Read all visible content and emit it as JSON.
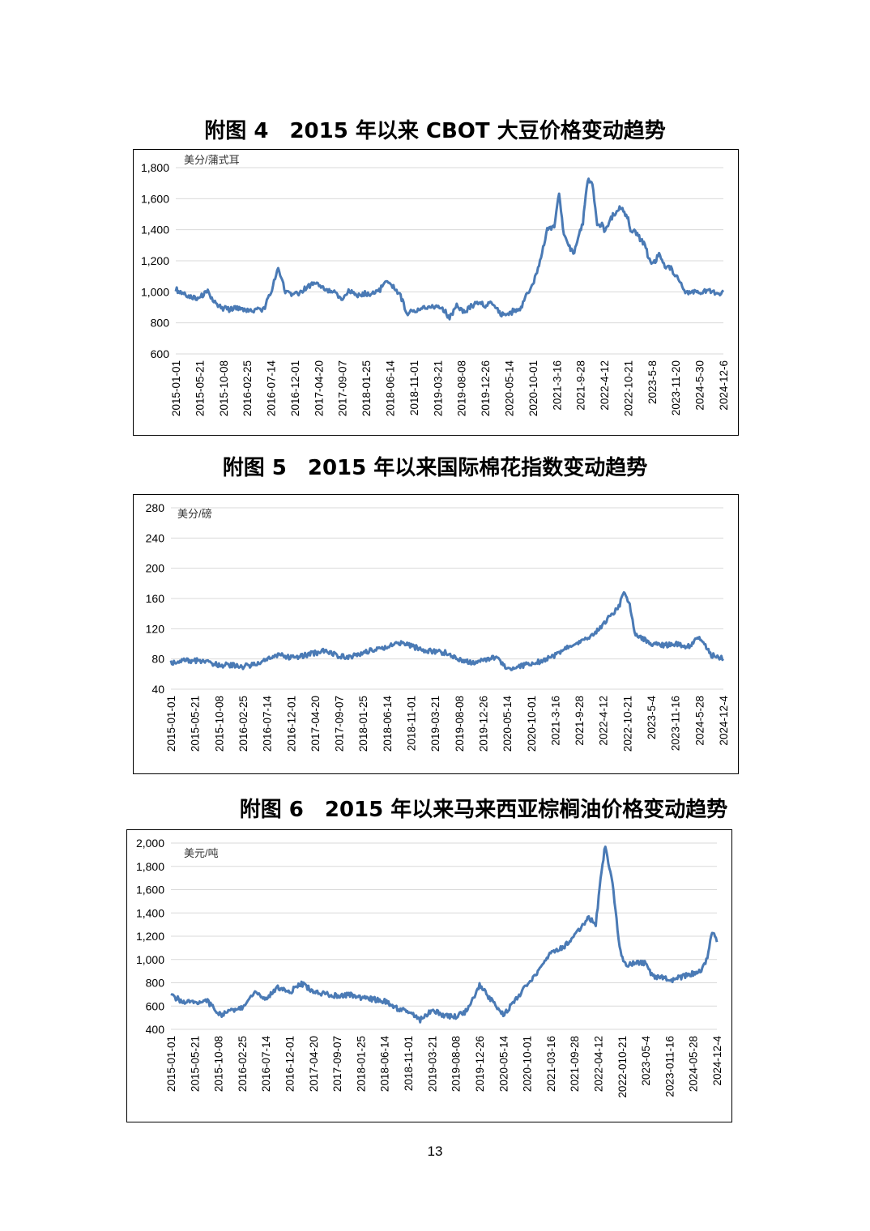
{
  "page_number": "13",
  "chart_data": [
    {
      "type": "line",
      "title": "附图 4　2015 年以来 CBOT 大豆价格变动趋势",
      "unit_label": "美分/蒲式耳",
      "ylim": [
        600,
        1800
      ],
      "yticks": [
        "600",
        "800",
        "1,000",
        "1,200",
        "1,400",
        "1,600",
        "1,800"
      ],
      "ytick_values": [
        600,
        800,
        1000,
        1200,
        1400,
        1600,
        1800
      ],
      "xticks": [
        "2015-01-01",
        "2015-05-21",
        "2015-10-08",
        "2016-02-25",
        "2016-07-14",
        "2016-12-01",
        "2017-04-20",
        "2017-09-07",
        "2018-01-25",
        "2018-06-14",
        "2018-11-01",
        "2019-03-21",
        "2019-08-08",
        "2019-12-26",
        "2020-05-14",
        "2020-10-01",
        "2021-3-16",
        "2021-9-28",
        "2022-4-12",
        "2022-10-21",
        "2023-5-8",
        "2023-11-20",
        "2024-5-30",
        "2024-12-6"
      ],
      "grid": true,
      "legend": "none",
      "color": "#4a7ab5",
      "series": [
        {
          "x": [
            0,
            0.2,
            0.5,
            0.8,
            1.0,
            1.3,
            1.6,
            1.9,
            2.2,
            2.5,
            2.8,
            3.1,
            3.4,
            3.7,
            4.0,
            4.3,
            4.6,
            4.9,
            5.2,
            5.5,
            5.8,
            6.1,
            6.4,
            6.7,
            7.0,
            7.3,
            7.6,
            7.9,
            8.2,
            8.5,
            8.8,
            9.1,
            9.4,
            9.7,
            10.0,
            10.3,
            10.6,
            10.9,
            11.2,
            11.5,
            11.8,
            12.1,
            12.4,
            12.7,
            13.0,
            13.3,
            13.6,
            13.9,
            14.2,
            14.5,
            14.8,
            15.0,
            15.3,
            15.6,
            15.9,
            16.1,
            16.3,
            16.5,
            16.7,
            16.9,
            17.1,
            17.3,
            17.5,
            17.7,
            17.9,
            18.0,
            18.2,
            18.4,
            18.6,
            18.8,
            19.0,
            19.1,
            19.3,
            19.5,
            19.7,
            19.9,
            20.1,
            20.3,
            20.5,
            20.8,
            21.1,
            21.4,
            21.7,
            22.0,
            22.3,
            22.6,
            22.9,
            23.0
          ],
          "y": [
            1020,
            990,
            975,
            965,
            960,
            1010,
            940,
            900,
            885,
            895,
            880,
            875,
            880,
            890,
            1000,
            1150,
            1000,
            975,
            990,
            1030,
            1050,
            1040,
            1010,
            990,
            955,
            1010,
            970,
            990,
            985,
            1000,
            1055,
            1040,
            990,
            865,
            870,
            900,
            895,
            900,
            895,
            830,
            920,
            870,
            905,
            930,
            915,
            935,
            860,
            840,
            880,
            900,
            1000,
            1050,
            1200,
            1400,
            1420,
            1630,
            1370,
            1300,
            1240,
            1350,
            1450,
            1720,
            1700,
            1420,
            1430,
            1400,
            1450,
            1500,
            1540,
            1520,
            1480,
            1400,
            1390,
            1340,
            1300,
            1200,
            1190,
            1240,
            1170,
            1150,
            1080,
            990,
            1000,
            990,
            1010,
            1000,
            980,
            1010
          ]
        }
      ]
    },
    {
      "type": "line",
      "title": "附图 5　2015 年以来国际棉花指数变动趋势",
      "unit_label": "美分/磅",
      "ylim": [
        40,
        280
      ],
      "yticks": [
        "40",
        "80",
        "120",
        "160",
        "200",
        "240",
        "280"
      ],
      "ytick_values": [
        40,
        80,
        120,
        160,
        200,
        240,
        280
      ],
      "xticks": [
        "2015-01-01",
        "2015-05-21",
        "2015-10-08",
        "2016-02-25",
        "2016-07-14",
        "2016-12-01",
        "2017-04-20",
        "2017-09-07",
        "2018-01-25",
        "2018-06-14",
        "2018-11-01",
        "2019-03-21",
        "2019-08-08",
        "2019-12-26",
        "2020-05-14",
        "2020-10-01",
        "2021-3-16",
        "2021-9-28",
        "2022-4-12",
        "2022-10-21",
        "2023-5-4",
        "2023-11-16",
        "2024-5-28",
        "2024-12-4"
      ],
      "grid": true,
      "legend": "none",
      "color": "#4a7ab5",
      "series": [
        {
          "x": [
            0,
            0.5,
            1.0,
            1.5,
            2.0,
            2.5,
            3.0,
            3.5,
            4.0,
            4.5,
            5.0,
            5.5,
            6.0,
            6.5,
            7.0,
            7.5,
            8.0,
            8.5,
            9.0,
            9.5,
            10.0,
            10.5,
            11.0,
            11.5,
            12.0,
            12.5,
            13.0,
            13.5,
            13.8,
            14.0,
            14.5,
            15.0,
            15.5,
            16.0,
            16.5,
            17.0,
            17.5,
            18.0,
            18.3,
            18.6,
            18.9,
            19.1,
            19.3,
            19.6,
            20.0,
            20.5,
            21.0,
            21.5,
            22.0,
            22.5,
            23.0
          ],
          "y": [
            75,
            78,
            78,
            75,
            72,
            72,
            70,
            73,
            80,
            85,
            82,
            84,
            88,
            91,
            84,
            83,
            88,
            93,
            96,
            101,
            97,
            92,
            90,
            88,
            80,
            75,
            78,
            82,
            75,
            67,
            70,
            74,
            78,
            85,
            95,
            102,
            110,
            125,
            140,
            145,
            170,
            150,
            115,
            108,
            100,
            98,
            100,
            95,
            110,
            85,
            80
          ]
        }
      ]
    },
    {
      "type": "line",
      "title": "附图 6　2015 年以来马来西亚棕榈油价格变动趋势",
      "unit_label": "美元/吨",
      "ylim": [
        400,
        2000
      ],
      "yticks": [
        "400",
        "600",
        "800",
        "1,000",
        "1,200",
        "1,400",
        "1,600",
        "1,800",
        "2,000"
      ],
      "ytick_values": [
        400,
        600,
        800,
        1000,
        1200,
        1400,
        1600,
        1800,
        2000
      ],
      "xticks": [
        "2015-01-01",
        "2015-05-21",
        "2015-10-08",
        "2016-02-25",
        "2016-07-14",
        "2016-12-01",
        "2017-04-20",
        "2017-09-07",
        "2018-01-25",
        "2018-06-14",
        "2018-11-01",
        "2019-03-21",
        "2019-08-08",
        "2019-12-26",
        "2020-05-14",
        "2020-10-01",
        "2021-03-16",
        "2021-09-28",
        "2022-04-12",
        "2022-010-21",
        "2023-05-4",
        "2023-011-16",
        "2024-05-28",
        "2024-12-4"
      ],
      "grid": true,
      "legend": "none",
      "color": "#4a7ab5",
      "series": [
        {
          "x": [
            0,
            0.5,
            1.0,
            1.5,
            1.8,
            2.1,
            2.5,
            3.0,
            3.5,
            4.0,
            4.5,
            5.0,
            5.5,
            6.0,
            6.5,
            7.0,
            7.5,
            8.0,
            8.5,
            9.0,
            9.5,
            10.0,
            10.5,
            11.0,
            11.5,
            12.0,
            12.5,
            13.0,
            13.5,
            14.0,
            14.5,
            15.0,
            15.5,
            16.0,
            16.5,
            17.0,
            17.3,
            17.6,
            17.9,
            18.1,
            18.3,
            18.6,
            18.9,
            19.1,
            19.3,
            19.6,
            20.0,
            20.3,
            20.6,
            21.0,
            21.5,
            22.0,
            22.3,
            22.6,
            22.8,
            23.0
          ],
          "y": [
            690,
            640,
            630,
            650,
            580,
            520,
            560,
            580,
            720,
            660,
            760,
            720,
            790,
            730,
            700,
            690,
            700,
            670,
            660,
            640,
            580,
            560,
            480,
            560,
            520,
            510,
            560,
            780,
            650,
            520,
            650,
            780,
            900,
            1050,
            1100,
            1200,
            1280,
            1360,
            1300,
            1700,
            1980,
            1650,
            1100,
            980,
            950,
            980,
            970,
            850,
            850,
            820,
            850,
            880,
            900,
            1000,
            1250,
            1150
          ]
        }
      ]
    }
  ]
}
